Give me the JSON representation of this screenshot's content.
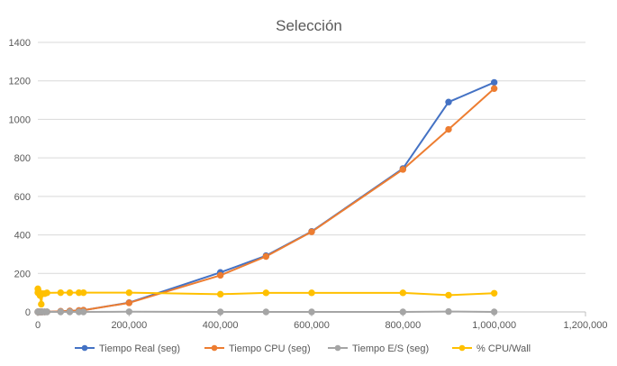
{
  "chart_data": {
    "type": "scatter",
    "title": "Selección",
    "xlabel": "",
    "ylabel": "",
    "xlim": [
      0,
      1200000
    ],
    "ylim": [
      0,
      1400
    ],
    "x_ticks": [
      0,
      200000,
      400000,
      600000,
      800000,
      1000000,
      1200000
    ],
    "x_tick_labels": [
      "0",
      "200,000",
      "400,000",
      "600,000",
      "800,000",
      "1,000,000",
      "1,200,000"
    ],
    "y_ticks": [
      0,
      200,
      400,
      600,
      800,
      1000,
      1200,
      1400
    ],
    "y_tick_labels": [
      "0",
      "200",
      "400",
      "600",
      "800",
      "1000",
      "1200",
      "1400"
    ],
    "grid": "horizontal",
    "legend_position": "bottom",
    "x": [
      10,
      100,
      1000,
      2500,
      5000,
      7500,
      10000,
      15000,
      20000,
      50000,
      70000,
      90000,
      100000,
      200000,
      400000,
      500000,
      600000,
      800000,
      900000,
      1000000
    ],
    "series": [
      {
        "name": "Tiempo Real (seg)",
        "color": "#4472C4",
        "values": [
          0,
          0,
          0,
          0,
          0,
          0,
          0,
          0,
          0.5,
          3,
          5,
          7,
          9,
          48,
          205,
          292,
          418,
          745,
          1090,
          1192
        ]
      },
      {
        "name": "Tiempo CPU (seg)",
        "color": "#ED7D31",
        "values": [
          0,
          0,
          0,
          0,
          0,
          0,
          0,
          0,
          0.5,
          3,
          5,
          7,
          9,
          47,
          190,
          288,
          416,
          740,
          948,
          1160
        ]
      },
      {
        "name": "Tiempo E/S (seg)",
        "color": "#A5A5A5",
        "values": [
          0,
          0,
          0,
          0,
          0,
          0,
          0,
          0,
          0,
          0,
          0,
          0,
          0,
          1,
          0,
          0,
          0,
          0,
          2,
          0
        ]
      },
      {
        "name": "% CPU/Wall",
        "color": "#FFC000",
        "values": [
          100,
          120,
          110,
          95,
          85,
          40,
          95,
          95,
          99,
          100,
          100,
          100,
          100,
          100,
          92,
          99,
          99,
          99,
          87,
          97
        ]
      }
    ]
  }
}
